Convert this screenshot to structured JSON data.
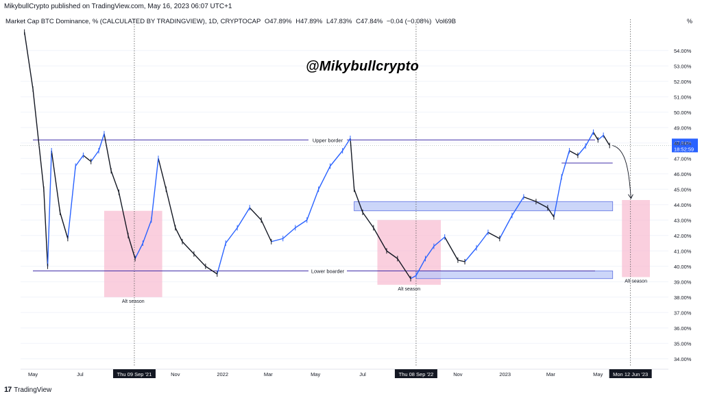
{
  "header": {
    "published": "MikybullCrypto published on TradingView.com, May 16, 2023 06:07 UTC+1",
    "legend_title": "Market Cap BTC Dominance, % (CALCULATED BY TRADINGVIEW), 1D, CRYPTOCAP",
    "open": "O47.89%",
    "high": "H47.89%",
    "low": "L47.83%",
    "close": "C47.84%",
    "change": "−0.04 (−0.08%)",
    "vol": "Vol69B",
    "pct_symbol": "%"
  },
  "watermark": "@Mikybullcrypto",
  "footer": {
    "brand": "TradingView",
    "logo": "17"
  },
  "colors": {
    "up": "#2962ff",
    "down": "#131722",
    "hline": "#3f2ca8",
    "pink_zone": "#f8bbd0",
    "blue_zone": "#bbc8f7",
    "price_badge": "#2962ff",
    "grid": "#f0f3fa"
  },
  "chart_data": {
    "type": "line",
    "title": "Market Cap BTC Dominance, %",
    "ylabel": "%",
    "ylim": [
      33.5,
      55.5
    ],
    "y_ticks": [
      "54.00%",
      "53.00%",
      "52.00%",
      "51.00%",
      "50.00%",
      "49.00%",
      "48.00%",
      "47.00%",
      "46.00%",
      "45.00%",
      "44.00%",
      "43.00%",
      "42.00%",
      "41.00%",
      "40.00%",
      "39.00%",
      "38.00%",
      "37.00%",
      "36.00%",
      "35.00%",
      "34.00%"
    ],
    "y_tick_values": [
      54,
      53,
      52,
      51,
      50,
      49,
      48,
      47,
      46,
      45,
      44,
      43,
      42,
      41,
      40,
      39,
      38,
      37,
      36,
      35,
      34
    ],
    "x_ticks": [
      "May",
      "Jul",
      "Thu 09 Sep '21",
      "Nov",
      "2022",
      "Mar",
      "May",
      "Jul",
      "Thu 08 Sep '22",
      "Nov",
      "2023",
      "Mar",
      "May",
      "Mon 12 Jun '23"
    ],
    "x_tick_dates": [
      "2021-05-01",
      "2021-07-01",
      "2021-09-09",
      "2021-11-01",
      "2022-01-01",
      "2022-03-01",
      "2022-05-01",
      "2022-07-01",
      "2022-09-08",
      "2022-11-01",
      "2023-01-01",
      "2023-03-01",
      "2023-05-01",
      "2023-06-12"
    ],
    "highlighted_x_ticks": [
      "Thu 09 Sep '21",
      "Thu 08 Sep '22",
      "Mon 12 Jun '23"
    ],
    "series": [
      {
        "x": [
          "2021-04-20",
          "2021-05-01",
          "2021-05-15",
          "2021-05-20",
          "2021-05-25",
          "2021-06-05",
          "2021-06-15",
          "2021-06-25",
          "2021-07-05",
          "2021-07-15",
          "2021-07-25",
          "2021-08-01",
          "2021-08-10",
          "2021-08-20",
          "2021-09-01",
          "2021-09-10",
          "2021-09-20",
          "2021-10-01",
          "2021-10-10",
          "2021-10-20",
          "2021-11-01",
          "2021-11-10",
          "2021-11-25",
          "2021-12-10",
          "2021-12-25",
          "2022-01-05",
          "2022-01-20",
          "2022-02-05",
          "2022-02-20",
          "2022-03-05",
          "2022-03-20",
          "2022-04-05",
          "2022-04-20",
          "2022-05-05",
          "2022-05-20",
          "2022-06-05",
          "2022-06-15",
          "2022-06-20",
          "2022-07-01",
          "2022-07-15",
          "2022-08-01",
          "2022-08-15",
          "2022-09-01",
          "2022-09-08",
          "2022-09-20",
          "2022-10-01",
          "2022-10-15",
          "2022-11-01",
          "2022-11-10",
          "2022-11-25",
          "2022-12-10",
          "2022-12-25",
          "2023-01-10",
          "2023-01-25",
          "2023-02-10",
          "2023-02-25",
          "2023-03-05",
          "2023-03-15",
          "2023-03-25",
          "2023-04-05",
          "2023-04-15",
          "2023-04-25",
          "2023-05-01",
          "2023-05-08",
          "2023-05-16"
        ],
        "y": [
          55.2,
          51.5,
          45.0,
          40.0,
          47.5,
          43.5,
          41.8,
          46.5,
          47.2,
          46.8,
          47.5,
          48.6,
          46.2,
          44.8,
          42.0,
          40.5,
          41.5,
          43.0,
          47.0,
          45.0,
          42.5,
          41.6,
          40.8,
          40.0,
          39.5,
          41.5,
          42.5,
          43.8,
          43.0,
          41.6,
          41.8,
          42.5,
          43.0,
          45.0,
          46.5,
          47.5,
          48.3,
          45.0,
          43.5,
          42.5,
          41.0,
          40.5,
          39.2,
          39.4,
          40.5,
          41.3,
          41.9,
          40.4,
          40.3,
          41.2,
          42.2,
          41.8,
          43.3,
          44.5,
          44.2,
          43.8,
          43.2,
          45.8,
          47.5,
          47.2,
          47.8,
          48.7,
          48.2,
          48.5,
          47.84
        ]
      }
    ],
    "annotations": {
      "hlines": [
        {
          "label": "Upper border",
          "y": 48.2
        },
        {
          "label": "Lower boarder",
          "y": 39.7
        },
        {
          "label": "",
          "y": 46.7,
          "from": "2023-03-15",
          "to": "2023-05-20"
        }
      ],
      "zones": [
        {
          "label": "Alt season",
          "kind": "pink",
          "x0": "2021-08-01",
          "x1": "2021-10-15",
          "y0": 38.0,
          "y1": 43.6
        },
        {
          "label": "Alt season",
          "kind": "pink",
          "x0": "2022-07-20",
          "x1": "2022-10-10",
          "y0": 38.8,
          "y1": 43.0
        },
        {
          "label": "Alt season",
          "kind": "pink",
          "x0": "2023-06-01",
          "x1": "2023-07-15",
          "y0": 39.3,
          "y1": 44.3
        },
        {
          "label": "",
          "kind": "blue",
          "x0": "2022-06-20",
          "x1": "2023-05-20",
          "y0": 43.6,
          "y1": 44.2
        },
        {
          "label": "",
          "kind": "blue",
          "x0": "2022-09-08",
          "x1": "2023-05-20",
          "y0": 39.2,
          "y1": 39.7
        }
      ],
      "vlines": [
        "2021-09-09",
        "2022-09-08",
        "2023-06-12"
      ],
      "last_price": "47.84%",
      "countdown": "18:52:59"
    }
  }
}
